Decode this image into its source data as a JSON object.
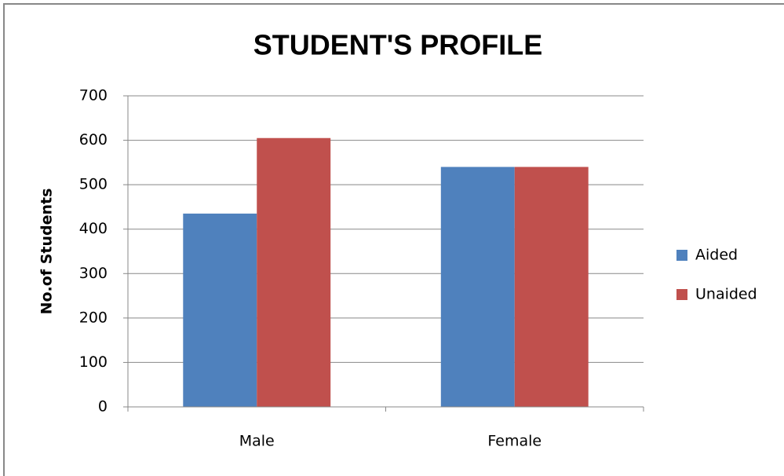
{
  "chart_data": {
    "type": "bar",
    "title": "STUDENT'S PROFILE",
    "y_axis_label": "No.of  Students",
    "categories": [
      "Male",
      "Female"
    ],
    "series": [
      {
        "name": "Aided",
        "color": "#4f81bd",
        "values": [
          435,
          540
        ]
      },
      {
        "name": "Unaided",
        "color": "#c0504d",
        "values": [
          605,
          540
        ]
      }
    ],
    "ylim": [
      0,
      700
    ],
    "yticks": [
      0,
      100,
      200,
      300,
      400,
      500,
      600,
      700
    ],
    "grid": true,
    "legend": "right"
  }
}
